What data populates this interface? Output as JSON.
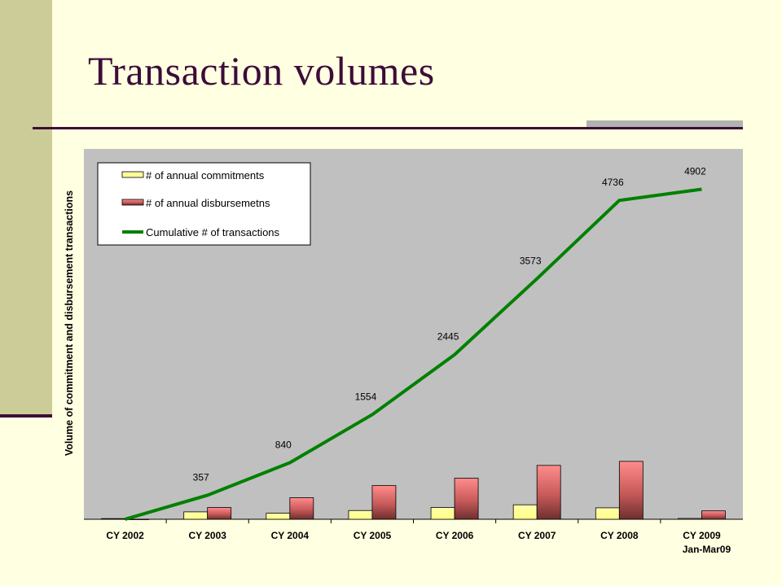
{
  "slide": {
    "title": "Transaction volumes"
  },
  "colors": {
    "background": "#FFFFE1",
    "accent_bar": "#CCCC99",
    "title": "#3D0C39",
    "plot_area": "#C0C0C0",
    "commitments_bar": "#FFFF99",
    "disbursements_bar": "#F28080",
    "cumulative_line": "#008000"
  },
  "chart_data": {
    "type": "bar",
    "ylabel": "Volume of commitment and disbursement transactions",
    "xlabel": "",
    "ylim": [
      0,
      5500
    ],
    "grid": false,
    "legend_position": "top-left",
    "categories": [
      [
        "CY 2002"
      ],
      [
        "CY 2003"
      ],
      [
        "CY 2004"
      ],
      [
        "CY 2005"
      ],
      [
        "CY 2006"
      ],
      [
        "CY 2007"
      ],
      [
        "CY 2008"
      ],
      [
        "CY 2009",
        "Jan-Mar09"
      ]
    ],
    "series": [
      {
        "name": "# of annual commitments",
        "kind": "bar",
        "values": [
          10,
          110,
          90,
          130,
          175,
          215,
          170,
          12
        ]
      },
      {
        "name": "# of annual disbursemetns",
        "kind": "bar",
        "values": [
          0,
          175,
          320,
          500,
          610,
          800,
          860,
          125
        ]
      },
      {
        "name": "Cumulative # of transactions",
        "kind": "line",
        "values": [
          0,
          357,
          840,
          1554,
          2445,
          3573,
          4736,
          4902
        ],
        "labels": [
          "",
          "357",
          "840",
          "1554",
          "2445",
          "3573",
          "4736",
          "4902"
        ]
      }
    ]
  }
}
